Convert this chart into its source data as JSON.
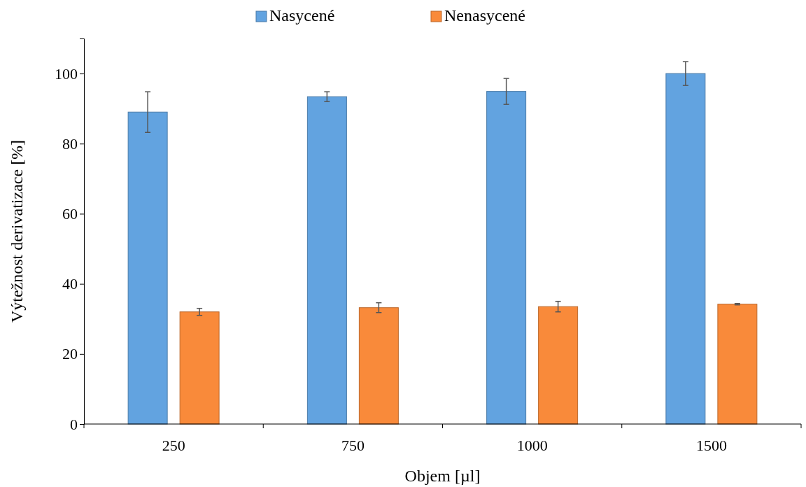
{
  "chart_data": {
    "type": "bar",
    "xlabel": "Objem [µl]",
    "ylabel": "Výtežnost derivatizace [%]",
    "categories": [
      "250",
      "750",
      "1000",
      "1500"
    ],
    "series": [
      {
        "name": "Nasycené",
        "color": "#62a3e0",
        "values": [
          89,
          93.4,
          94.9,
          100
        ],
        "errors": [
          5.8,
          1.4,
          3.7,
          3.4
        ]
      },
      {
        "name": "Nenasycené",
        "color": "#f98a3a",
        "values": [
          32,
          33.2,
          33.5,
          34.2
        ],
        "errors": [
          1,
          1.4,
          1.5,
          0.2
        ]
      }
    ],
    "ylim": [
      0,
      110
    ],
    "yticks": [
      0,
      20,
      40,
      60,
      80,
      100
    ],
    "grid": false,
    "legend": "top"
  }
}
